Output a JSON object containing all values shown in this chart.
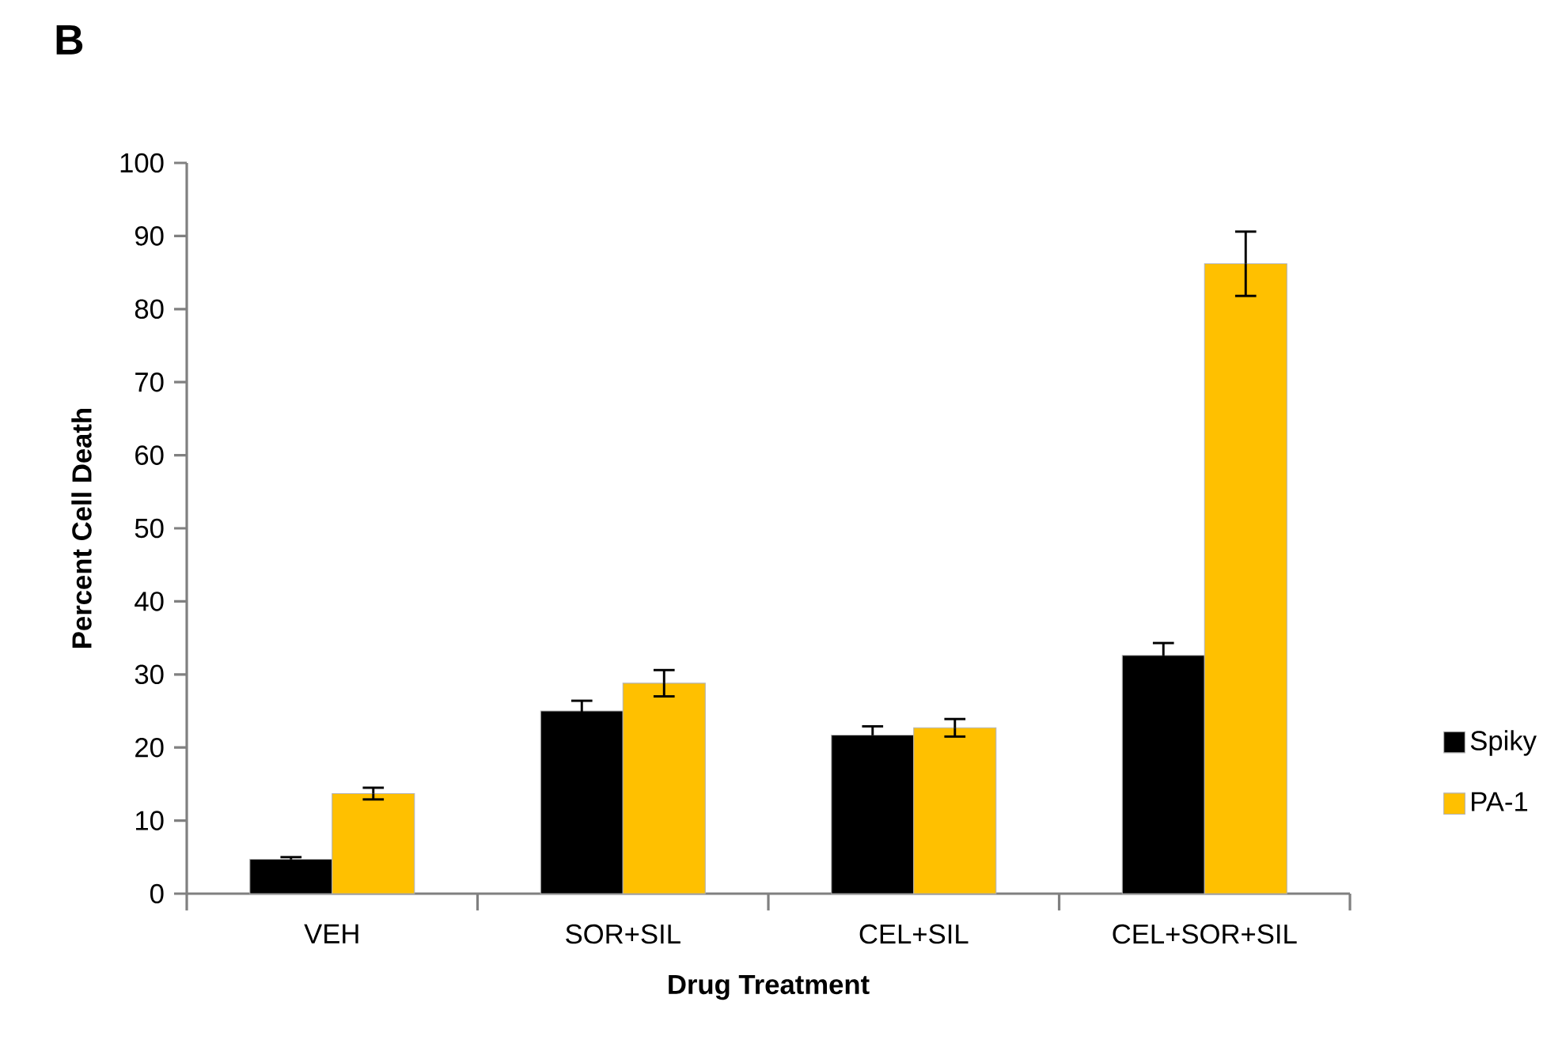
{
  "chart_data": {
    "type": "bar",
    "annotations": [
      "B"
    ],
    "xlabel": "Drug Treatment",
    "ylabel": "Percent Cell Death",
    "categories": [
      "VEH",
      "SOR+SIL",
      "CEL+SIL",
      "CEL+SOR+SIL"
    ],
    "series": [
      {
        "name": "Spiky",
        "color": "#000000",
        "values": [
          4.7,
          25.0,
          21.7,
          32.6
        ],
        "errors": [
          0.3,
          1.4,
          1.2,
          1.7
        ]
      },
      {
        "name": "PA-1",
        "color": "#ffc000",
        "values": [
          13.7,
          28.8,
          22.7,
          86.2
        ],
        "errors": [
          0.8,
          1.8,
          1.2,
          4.4
        ]
      }
    ],
    "ylim": [
      0,
      100
    ],
    "yticks": [
      0,
      10,
      20,
      30,
      40,
      50,
      60,
      70,
      80,
      90,
      100
    ],
    "grid": false,
    "legend": "right"
  }
}
